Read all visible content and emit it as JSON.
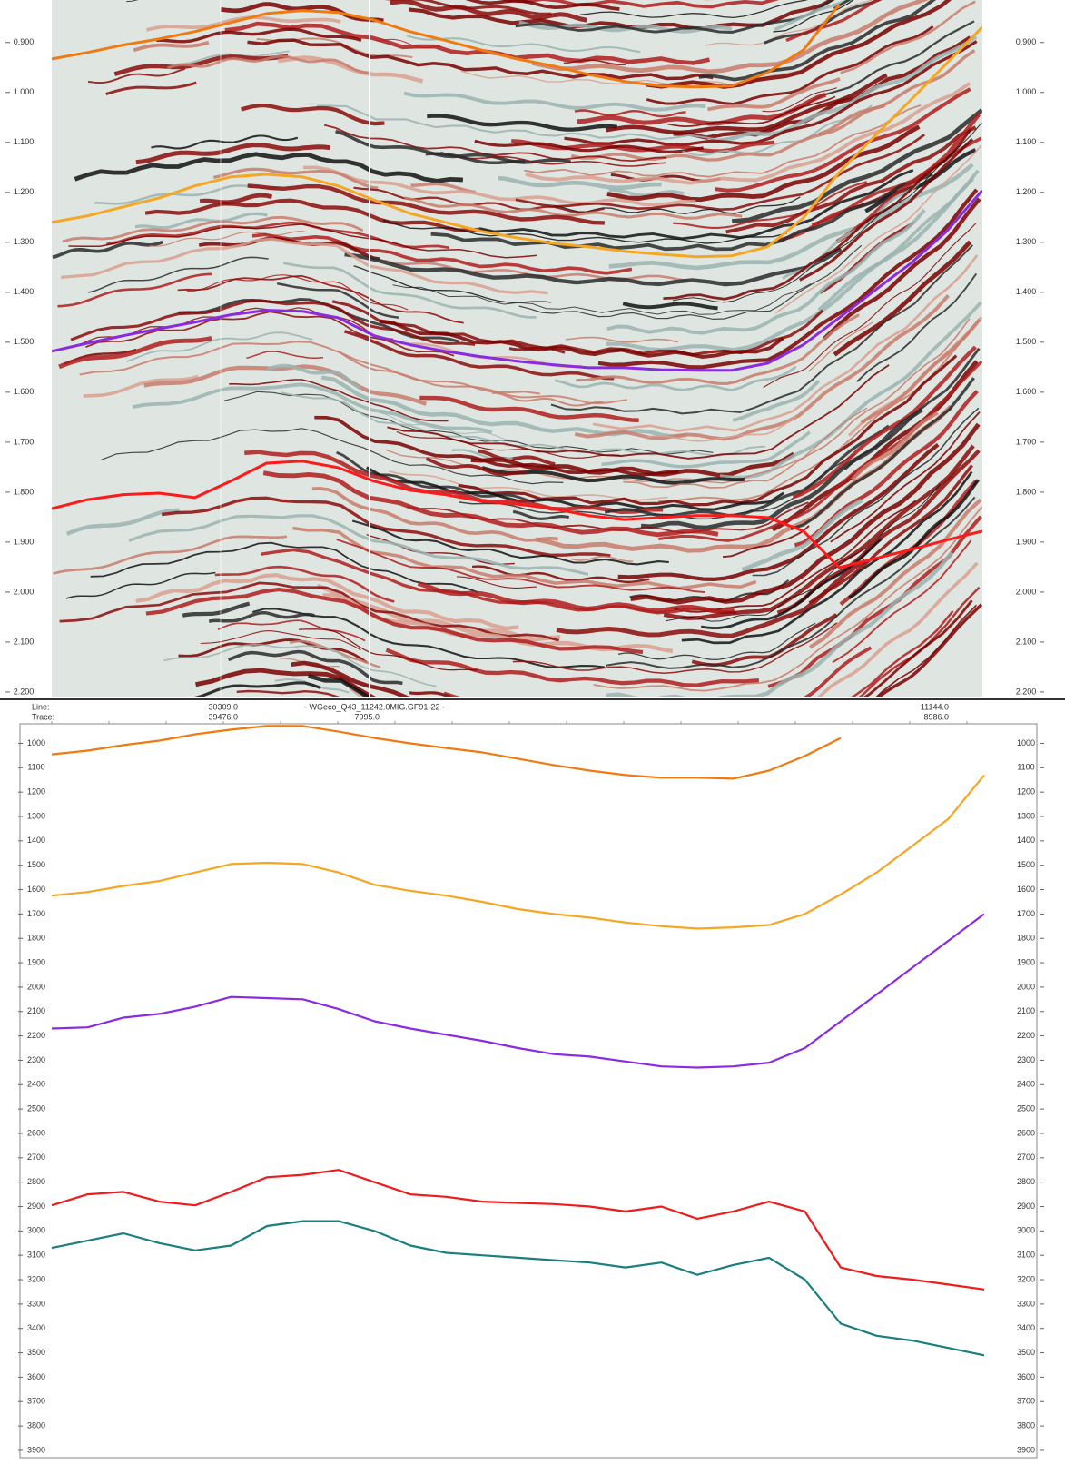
{
  "header": {
    "line_label": "Line:",
    "trace_label": "Trace:",
    "title": "- WGeco_Q43_11242.0MIG.GF91-22 -",
    "line_values": [
      "30309.0",
      "11144.0"
    ],
    "trace_values": [
      "39476.0",
      "7995.0",
      "8986.0"
    ]
  },
  "chart_data": [
    {
      "type": "line",
      "y_reversed": true,
      "ylim": [
        0.815,
        2.211
      ],
      "yticks": [
        {
          "value": 0.9,
          "label": "0.900"
        },
        {
          "value": 1.0,
          "label": "1.000"
        },
        {
          "value": 1.1,
          "label": "1.100"
        },
        {
          "value": 1.2,
          "label": "1.200"
        },
        {
          "value": 1.3,
          "label": "1.300"
        },
        {
          "value": 1.4,
          "label": "1.400"
        },
        {
          "value": 1.5,
          "label": "1.500"
        },
        {
          "value": 1.6,
          "label": "1.600"
        },
        {
          "value": 1.7,
          "label": "1.700"
        },
        {
          "value": 1.8,
          "label": "1.800"
        },
        {
          "value": 1.9,
          "label": "1.900"
        },
        {
          "value": 2.0,
          "label": "2.000"
        },
        {
          "value": 2.1,
          "label": "2.100"
        },
        {
          "value": 2.2,
          "label": "2.200"
        }
      ],
      "series": [
        {
          "color": "#f07a10",
          "values": [
            0.933,
            0.92,
            0.905,
            0.893,
            0.878,
            0.86,
            0.842,
            0.836,
            0.84,
            0.855,
            0.878,
            0.896,
            0.915,
            0.933,
            0.947,
            0.964,
            0.978,
            0.987,
            0.989,
            0.987,
            0.96,
            0.915,
            0.824,
            null,
            null,
            null,
            null
          ]
        },
        {
          "color": "#f5a623",
          "values": [
            1.26,
            1.247,
            1.229,
            1.211,
            1.187,
            1.169,
            1.164,
            1.169,
            1.187,
            1.215,
            1.242,
            1.26,
            1.278,
            1.291,
            1.302,
            1.309,
            1.318,
            1.324,
            1.329,
            1.327,
            1.309,
            1.251,
            1.16,
            1.087,
            1.015,
            0.942,
            0.869
          ]
        },
        {
          "color": "#8a2be2",
          "values": [
            1.518,
            1.502,
            1.487,
            1.473,
            1.46,
            1.445,
            1.436,
            1.438,
            1.451,
            1.487,
            1.505,
            1.518,
            1.529,
            1.538,
            1.545,
            1.551,
            1.551,
            1.555,
            1.556,
            1.556,
            1.542,
            1.505,
            1.451,
            1.396,
            1.342,
            1.278,
            1.196
          ]
        },
        {
          "color": "#ff1a1a",
          "values": [
            1.833,
            1.815,
            1.805,
            1.802,
            1.811,
            1.778,
            1.742,
            1.738,
            1.751,
            1.778,
            1.796,
            1.805,
            1.818,
            1.824,
            1.833,
            1.847,
            1.855,
            1.851,
            1.847,
            1.847,
            1.851,
            1.878,
            1.951,
            1.933,
            1.915,
            1.896,
            1.878
          ]
        }
      ]
    },
    {
      "type": "line",
      "y_reversed": true,
      "ylim": [
        920,
        3930
      ],
      "yticks": [
        1000,
        1100,
        1200,
        1300,
        1400,
        1500,
        1600,
        1700,
        1800,
        1900,
        2000,
        2100,
        2200,
        2300,
        2400,
        2500,
        2600,
        2700,
        2800,
        2900,
        3000,
        3100,
        3200,
        3300,
        3400,
        3500,
        3600,
        3700,
        3800,
        3900
      ],
      "series": [
        {
          "color": "#f07a10",
          "values": [
            1045,
            1030,
            1007,
            989,
            963,
            944,
            929,
            929,
            952,
            978,
            1000,
            1019,
            1037,
            1063,
            1089,
            1112,
            1130,
            1141,
            1141,
            1145,
            1112,
            1052,
            978,
            null,
            null,
            null,
            null
          ]
        },
        {
          "color": "#f5a623",
          "values": [
            1625,
            1610,
            1585,
            1565,
            1530,
            1495,
            1490,
            1495,
            1530,
            1580,
            1605,
            1625,
            1650,
            1680,
            1700,
            1715,
            1735,
            1750,
            1760,
            1755,
            1745,
            1700,
            1620,
            1530,
            1420,
            1310,
            1130
          ]
        },
        {
          "color": "#8a2be2",
          "values": [
            2170,
            2165,
            2125,
            2110,
            2080,
            2040,
            2045,
            2050,
            2090,
            2140,
            2170,
            2195,
            2220,
            2250,
            2275,
            2285,
            2305,
            2325,
            2330,
            2325,
            2310,
            2250,
            2140,
            2030,
            1920,
            1810,
            1700
          ]
        },
        {
          "color": "#ee1c1c",
          "values": [
            2895,
            2850,
            2840,
            2880,
            2895,
            2840,
            2780,
            2770,
            2750,
            2800,
            2850,
            2860,
            2880,
            2885,
            2890,
            2900,
            2920,
            2900,
            2950,
            2920,
            2880,
            2920,
            3150,
            3185,
            3200,
            3220,
            3240
          ]
        },
        {
          "color": "#1a7f7f",
          "values": [
            3070,
            3040,
            3010,
            3050,
            3080,
            3060,
            2980,
            2960,
            2960,
            3000,
            3060,
            3090,
            3100,
            3110,
            3120,
            3130,
            3150,
            3130,
            3180,
            3140,
            3110,
            3200,
            3380,
            3430,
            3450,
            3480,
            3510
          ]
        }
      ]
    }
  ]
}
